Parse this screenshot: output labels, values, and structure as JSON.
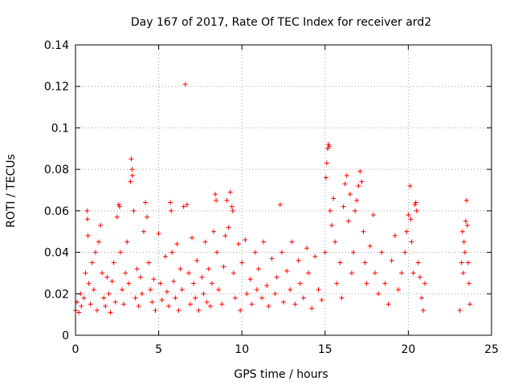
{
  "chart_data": {
    "type": "scatter",
    "title": "Day 167 of 2017, Rate Of TEC Index for receiver ard2",
    "xlabel": "GPS time / hours",
    "ylabel": "ROTI / TECUs",
    "xlim": [
      0,
      25
    ],
    "ylim": [
      0,
      0.14
    ],
    "xticks": [
      0,
      5,
      10,
      15,
      20,
      25
    ],
    "yticks": [
      0,
      0.02,
      0.04,
      0.06,
      0.08,
      0.1,
      0.12,
      0.14
    ],
    "xtick_labels": [
      "0",
      "5",
      "10",
      "15",
      "20",
      "25"
    ],
    "ytick_labels": [
      "0",
      "0.02",
      "0.04",
      "0.06",
      "0.08",
      "0.1",
      "0.12",
      "0.14"
    ],
    "grid": true,
    "marker": "+",
    "color": "#ff0000",
    "series": [
      {
        "points": [
          [
            0.0,
            0.012
          ],
          [
            0.1,
            0.016
          ],
          [
            0.2,
            0.011
          ],
          [
            0.3,
            0.02
          ],
          [
            0.35,
            0.014
          ],
          [
            0.5,
            0.018
          ],
          [
            0.6,
            0.03
          ],
          [
            0.7,
            0.06
          ],
          [
            0.72,
            0.056
          ],
          [
            0.75,
            0.048
          ],
          [
            0.8,
            0.025
          ],
          [
            0.9,
            0.015
          ],
          [
            1.0,
            0.035
          ],
          [
            1.1,
            0.022
          ],
          [
            1.2,
            0.04
          ],
          [
            1.3,
            0.012
          ],
          [
            1.4,
            0.045
          ],
          [
            1.5,
            0.053
          ],
          [
            1.6,
            0.03
          ],
          [
            1.7,
            0.018
          ],
          [
            1.8,
            0.014
          ],
          [
            1.9,
            0.028
          ],
          [
            2.0,
            0.02
          ],
          [
            2.1,
            0.011
          ],
          [
            2.2,
            0.026
          ],
          [
            2.3,
            0.035
          ],
          [
            2.4,
            0.016
          ],
          [
            2.5,
            0.057
          ],
          [
            2.6,
            0.063
          ],
          [
            2.65,
            0.062
          ],
          [
            2.7,
            0.04
          ],
          [
            2.8,
            0.022
          ],
          [
            2.9,
            0.015
          ],
          [
            3.0,
            0.03
          ],
          [
            3.1,
            0.045
          ],
          [
            3.2,
            0.025
          ],
          [
            3.3,
            0.074
          ],
          [
            3.35,
            0.085
          ],
          [
            3.4,
            0.08
          ],
          [
            3.42,
            0.077
          ],
          [
            3.5,
            0.06
          ],
          [
            3.6,
            0.018
          ],
          [
            3.7,
            0.032
          ],
          [
            3.8,
            0.014
          ],
          [
            3.9,
            0.028
          ],
          [
            4.0,
            0.02
          ],
          [
            4.1,
            0.05
          ],
          [
            4.2,
            0.064
          ],
          [
            4.3,
            0.057
          ],
          [
            4.4,
            0.035
          ],
          [
            4.5,
            0.022
          ],
          [
            4.6,
            0.016
          ],
          [
            4.7,
            0.027
          ],
          [
            4.8,
            0.012
          ],
          [
            5.0,
            0.049
          ],
          [
            5.1,
            0.025
          ],
          [
            5.2,
            0.017
          ],
          [
            5.4,
            0.038
          ],
          [
            5.5,
            0.021
          ],
          [
            5.6,
            0.014
          ],
          [
            5.7,
            0.064
          ],
          [
            5.75,
            0.06
          ],
          [
            5.8,
            0.04
          ],
          [
            5.9,
            0.026
          ],
          [
            6.0,
            0.018
          ],
          [
            6.1,
            0.044
          ],
          [
            6.2,
            0.012
          ],
          [
            6.3,
            0.032
          ],
          [
            6.4,
            0.022
          ],
          [
            6.5,
            0.062
          ],
          [
            6.6,
            0.121
          ],
          [
            6.7,
            0.063
          ],
          [
            6.8,
            0.03
          ],
          [
            6.9,
            0.015
          ],
          [
            7.0,
            0.047
          ],
          [
            7.1,
            0.025
          ],
          [
            7.2,
            0.018
          ],
          [
            7.3,
            0.036
          ],
          [
            7.4,
            0.012
          ],
          [
            7.6,
            0.028
          ],
          [
            7.7,
            0.02
          ],
          [
            7.8,
            0.045
          ],
          [
            7.9,
            0.016
          ],
          [
            8.0,
            0.032
          ],
          [
            8.1,
            0.014
          ],
          [
            8.2,
            0.025
          ],
          [
            8.3,
            0.05
          ],
          [
            8.4,
            0.068
          ],
          [
            8.45,
            0.065
          ],
          [
            8.5,
            0.04
          ],
          [
            8.6,
            0.022
          ],
          [
            8.8,
            0.015
          ],
          [
            8.9,
            0.033
          ],
          [
            9.0,
            0.048
          ],
          [
            9.1,
            0.065
          ],
          [
            9.2,
            0.052
          ],
          [
            9.3,
            0.069
          ],
          [
            9.4,
            0.062
          ],
          [
            9.45,
            0.06
          ],
          [
            9.5,
            0.03
          ],
          [
            9.6,
            0.018
          ],
          [
            9.8,
            0.044
          ],
          [
            9.9,
            0.012
          ],
          [
            10.0,
            0.035
          ],
          [
            10.2,
            0.046
          ],
          [
            10.3,
            0.02
          ],
          [
            10.5,
            0.027
          ],
          [
            10.6,
            0.015
          ],
          [
            10.8,
            0.04
          ],
          [
            10.9,
            0.022
          ],
          [
            11.0,
            0.032
          ],
          [
            11.2,
            0.018
          ],
          [
            11.3,
            0.045
          ],
          [
            11.5,
            0.024
          ],
          [
            11.6,
            0.014
          ],
          [
            11.8,
            0.037
          ],
          [
            12.0,
            0.02
          ],
          [
            12.1,
            0.028
          ],
          [
            12.3,
            0.063
          ],
          [
            12.4,
            0.04
          ],
          [
            12.5,
            0.016
          ],
          [
            12.7,
            0.031
          ],
          [
            12.9,
            0.022
          ],
          [
            13.0,
            0.045
          ],
          [
            13.2,
            0.015
          ],
          [
            13.4,
            0.036
          ],
          [
            13.5,
            0.025
          ],
          [
            13.7,
            0.018
          ],
          [
            13.9,
            0.042
          ],
          [
            14.0,
            0.03
          ],
          [
            14.2,
            0.013
          ],
          [
            14.4,
            0.038
          ],
          [
            14.6,
            0.022
          ],
          [
            14.8,
            0.017
          ],
          [
            15.0,
            0.04
          ],
          [
            15.05,
            0.076
          ],
          [
            15.1,
            0.083
          ],
          [
            15.15,
            0.09
          ],
          [
            15.2,
            0.092
          ],
          [
            15.25,
            0.091
          ],
          [
            15.3,
            0.06
          ],
          [
            15.4,
            0.053
          ],
          [
            15.5,
            0.066
          ],
          [
            15.6,
            0.045
          ],
          [
            15.7,
            0.025
          ],
          [
            15.9,
            0.035
          ],
          [
            16.0,
            0.018
          ],
          [
            16.1,
            0.062
          ],
          [
            16.2,
            0.073
          ],
          [
            16.3,
            0.077
          ],
          [
            16.4,
            0.055
          ],
          [
            16.5,
            0.068
          ],
          [
            16.6,
            0.03
          ],
          [
            16.7,
            0.04
          ],
          [
            16.8,
            0.06
          ],
          [
            16.9,
            0.065
          ],
          [
            17.0,
            0.072
          ],
          [
            17.1,
            0.079
          ],
          [
            17.2,
            0.074
          ],
          [
            17.3,
            0.05
          ],
          [
            17.4,
            0.035
          ],
          [
            17.5,
            0.025
          ],
          [
            17.7,
            0.043
          ],
          [
            17.9,
            0.058
          ],
          [
            18.0,
            0.03
          ],
          [
            18.2,
            0.02
          ],
          [
            18.4,
            0.04
          ],
          [
            18.6,
            0.025
          ],
          [
            18.8,
            0.015
          ],
          [
            19.0,
            0.036
          ],
          [
            19.2,
            0.048
          ],
          [
            19.4,
            0.022
          ],
          [
            19.6,
            0.03
          ],
          [
            19.8,
            0.04
          ],
          [
            19.9,
            0.05
          ],
          [
            20.0,
            0.058
          ],
          [
            20.1,
            0.072
          ],
          [
            20.15,
            0.056
          ],
          [
            20.2,
            0.045
          ],
          [
            20.3,
            0.03
          ],
          [
            20.4,
            0.063
          ],
          [
            20.45,
            0.064
          ],
          [
            20.5,
            0.06
          ],
          [
            20.6,
            0.035
          ],
          [
            20.7,
            0.028
          ],
          [
            20.8,
            0.018
          ],
          [
            20.9,
            0.012
          ],
          [
            21.0,
            0.025
          ],
          [
            23.1,
            0.012
          ],
          [
            23.2,
            0.035
          ],
          [
            23.25,
            0.05
          ],
          [
            23.3,
            0.03
          ],
          [
            23.35,
            0.045
          ],
          [
            23.4,
            0.04
          ],
          [
            23.45,
            0.055
          ],
          [
            23.5,
            0.065
          ],
          [
            23.55,
            0.053
          ],
          [
            23.6,
            0.035
          ],
          [
            23.65,
            0.025
          ],
          [
            23.7,
            0.015
          ]
        ]
      }
    ]
  }
}
